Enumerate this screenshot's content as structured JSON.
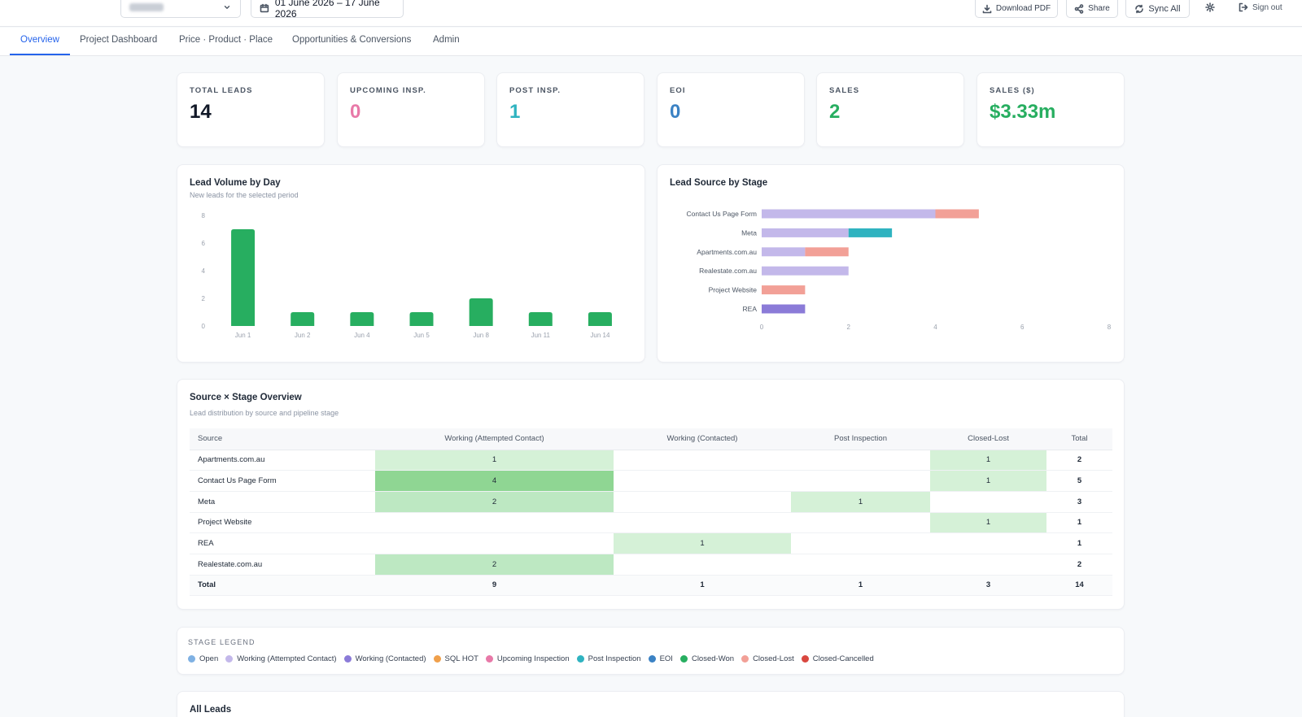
{
  "toolbar": {
    "date_range": "01 June 2026 – 17 June 2026",
    "download_pdf": "Download PDF",
    "share": "Share",
    "sync_all": "Sync All",
    "sign_out": "Sign out"
  },
  "tabs": [
    {
      "label": "Overview",
      "active": true
    },
    {
      "label": "Project Dashboard"
    },
    {
      "label": "Price · Product · Place"
    },
    {
      "label": "Opportunities & Conversions"
    },
    {
      "label": "Admin"
    }
  ],
  "kpis": [
    {
      "label": "TOTAL LEADS",
      "value": "14",
      "color": "#111827"
    },
    {
      "label": "UPCOMING INSP.",
      "value": "0",
      "color": "#e879a8"
    },
    {
      "label": "POST INSP.",
      "value": "1",
      "color": "#2fb3c0"
    },
    {
      "label": "EOI",
      "value": "0",
      "color": "#3b82c4"
    },
    {
      "label": "SALES",
      "value": "2",
      "color": "#27ae60"
    },
    {
      "label": "SALES ($)",
      "value": "$3.33m",
      "color": "#27ae60"
    }
  ],
  "lead_volume": {
    "title": "Lead Volume by Day",
    "subtitle": "New leads for the selected period"
  },
  "lead_source": {
    "title": "Lead Source by Stage"
  },
  "chart_data": [
    {
      "type": "bar",
      "title": "Lead Volume by Day",
      "subtitle": "New leads for the selected period",
      "categories": [
        "Jun 1",
        "Jun 2",
        "Jun 4",
        "Jun 5",
        "Jun 8",
        "Jun 11",
        "Jun 14"
      ],
      "values": [
        7,
        1,
        1,
        1,
        2,
        1,
        1
      ],
      "ylim": [
        0,
        8
      ],
      "yticks": [
        0,
        2,
        4,
        6,
        8
      ],
      "color": "#27ae60"
    },
    {
      "type": "bar",
      "orientation": "horizontal",
      "stacked": true,
      "title": "Lead Source by Stage",
      "categories": [
        "Contact Us Page Form",
        "Meta",
        "Apartments.com.au",
        "Realestate.com.au",
        "Project Website",
        "REA"
      ],
      "series": [
        {
          "stage": "Working (Attempted Contact)",
          "color": "#c3b8ea",
          "values": [
            4,
            2,
            1,
            2,
            0,
            0
          ]
        },
        {
          "stage": "Working (Contacted)",
          "color": "#8b7bd8",
          "values": [
            0,
            0,
            0,
            0,
            0,
            1
          ]
        },
        {
          "stage": "Post Inspection",
          "color": "#2fb3c0",
          "values": [
            0,
            1,
            0,
            0,
            0,
            0
          ]
        },
        {
          "stage": "Closed-Lost",
          "color": "#f2a097",
          "values": [
            1,
            0,
            1,
            0,
            1,
            0
          ]
        }
      ],
      "xlim": [
        0,
        8
      ],
      "xticks": [
        0,
        2,
        4,
        6,
        8
      ]
    }
  ],
  "overview": {
    "title": "Source × Stage Overview",
    "subtitle": "Lead distribution by source and pipeline stage",
    "headers": [
      "Source",
      "Working (Attempted Contact)",
      "Working (Contacted)",
      "Post Inspection",
      "Closed-Lost",
      "Total"
    ],
    "rows": [
      {
        "source": "Apartments.com.au",
        "cells": [
          "1",
          "",
          "",
          "1"
        ],
        "total": "2"
      },
      {
        "source": "Contact Us Page Form",
        "cells": [
          "4",
          "",
          "",
          "1"
        ],
        "total": "5"
      },
      {
        "source": "Meta",
        "cells": [
          "2",
          "",
          "1",
          ""
        ],
        "total": "3"
      },
      {
        "source": "Project Website",
        "cells": [
          "",
          "",
          "",
          "1"
        ],
        "total": "1"
      },
      {
        "source": "REA",
        "cells": [
          "",
          "1",
          "",
          ""
        ],
        "total": "1"
      },
      {
        "source": "Realestate.com.au",
        "cells": [
          "2",
          "",
          "",
          ""
        ],
        "total": "2"
      }
    ],
    "totals": {
      "label": "Total",
      "cells": [
        "9",
        "1",
        "1",
        "3"
      ],
      "total": "14"
    }
  },
  "legend": {
    "label": "STAGE LEGEND",
    "items": [
      {
        "label": "Open",
        "color": "#7fb1e3"
      },
      {
        "label": "Working (Attempted Contact)",
        "color": "#c3b8ea"
      },
      {
        "label": "Working (Contacted)",
        "color": "#8b7bd8"
      },
      {
        "label": "SQL HOT",
        "color": "#f0a04b"
      },
      {
        "label": "Upcoming Inspection",
        "color": "#e879a8"
      },
      {
        "label": "Post Inspection",
        "color": "#2fb3c0"
      },
      {
        "label": "EOI",
        "color": "#3b82c4"
      },
      {
        "label": "Closed-Won",
        "color": "#27ae60"
      },
      {
        "label": "Closed-Lost",
        "color": "#f2a097"
      },
      {
        "label": "Closed-Cancelled",
        "color": "#d9473f"
      }
    ]
  },
  "all_leads": {
    "title": "All Leads"
  }
}
